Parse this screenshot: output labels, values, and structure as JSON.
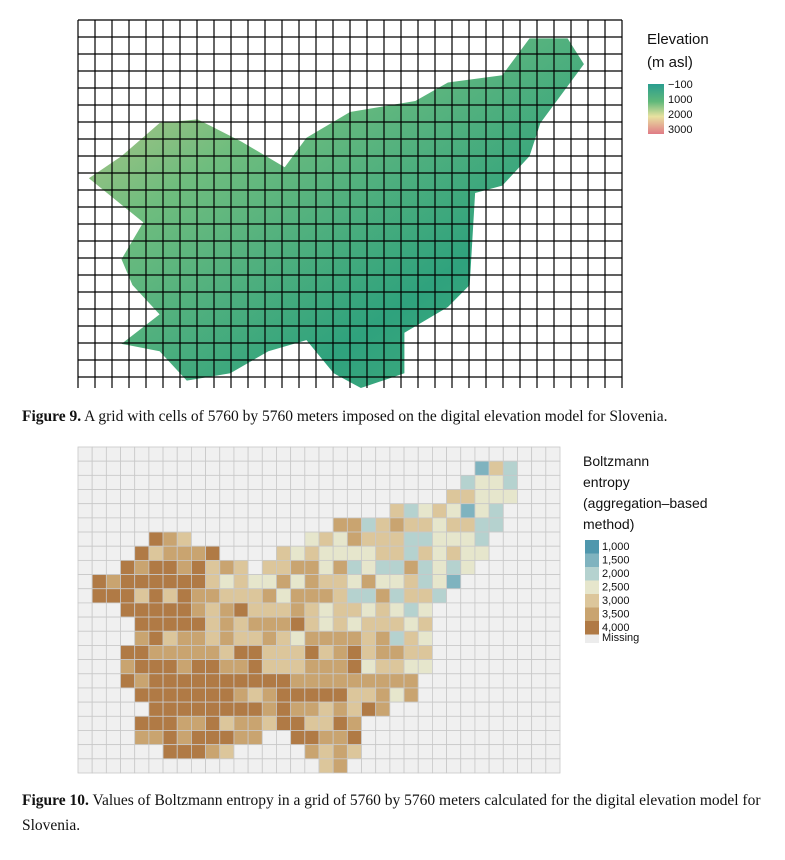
{
  "figure9": {
    "legend": {
      "title": [
        "Elevation",
        "(m asl)"
      ],
      "labels": [
        "−100",
        "1000",
        "2000",
        "3000"
      ]
    },
    "caption": {
      "label": "Figure 9.",
      "text": " A grid with cells of 5760 by 5760 meters imposed on the digital elevation model for Slovenia."
    }
  },
  "figure10": {
    "legend": {
      "title": [
        "Boltzmann",
        "entropy",
        "(aggregation–based",
        "method)"
      ],
      "labels": [
        "1,000",
        "1,500",
        "2,000",
        "2,500",
        "3,000",
        "3,500",
        "4,000"
      ],
      "missing": "Missing"
    },
    "caption": {
      "label": "Figure 10.",
      "text": " Values of Boltzmann entropy in a grid of 5760 by 5760 meters calculated for the digital elevation model for Slovenia."
    }
  }
}
